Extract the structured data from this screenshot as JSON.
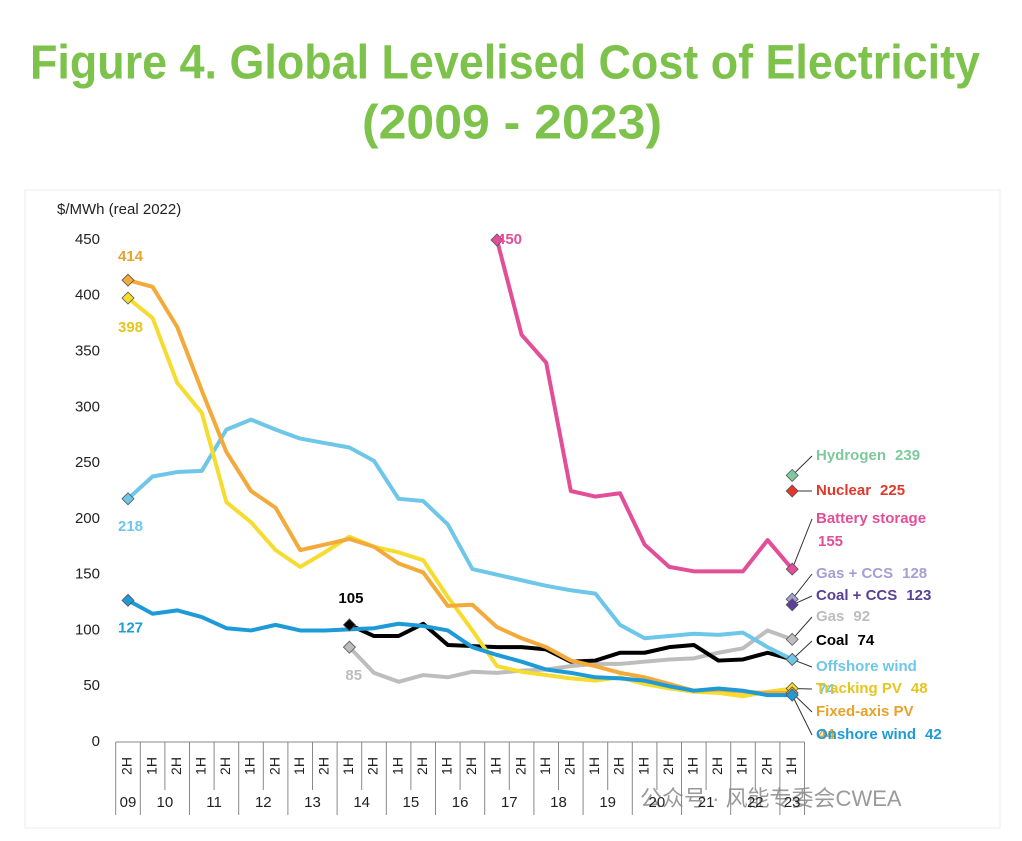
{
  "chart_data": {
    "type": "line",
    "title": "Figure 4. Global Levelised Cost of Electricity",
    "subtitle": "(2009 - 2023)",
    "y_label": "$/MWh (real 2022)",
    "categories": [
      "2H",
      "1H",
      "2H",
      "1H",
      "2H",
      "1H",
      "2H",
      "1H",
      "2H",
      "1H",
      "2H",
      "1H",
      "2H",
      "1H",
      "2H",
      "1H",
      "2H",
      "1H",
      "2H",
      "1H",
      "2H",
      "1H",
      "2H",
      "1H",
      "2H",
      "1H",
      "2H",
      "1H"
    ],
    "years": [
      "09",
      "10",
      "11",
      "12",
      "13",
      "14",
      "15",
      "16",
      "17",
      "18",
      "19",
      "20",
      "21",
      "22",
      "23"
    ],
    "ylim": [
      0,
      450
    ],
    "yticks": [
      0,
      50,
      100,
      150,
      200,
      250,
      300,
      350,
      400,
      450
    ],
    "grid": false,
    "series": [
      {
        "name": "Hydrogen",
        "color": "#7ec99b",
        "values": [
          null,
          null,
          null,
          null,
          null,
          null,
          null,
          null,
          null,
          null,
          null,
          null,
          null,
          null,
          null,
          null,
          null,
          null,
          null,
          null,
          null,
          null,
          null,
          null,
          null,
          null,
          null,
          239
        ]
      },
      {
        "name": "Nuclear",
        "color": "#e2372a",
        "values": [
          null,
          null,
          null,
          null,
          null,
          null,
          null,
          null,
          null,
          null,
          null,
          null,
          null,
          null,
          null,
          null,
          null,
          null,
          null,
          null,
          null,
          null,
          null,
          null,
          null,
          null,
          null,
          225
        ]
      },
      {
        "name": "Battery storage",
        "color": "#e24e98",
        "values": [
          null,
          null,
          null,
          null,
          null,
          null,
          null,
          null,
          null,
          null,
          null,
          null,
          null,
          null,
          null,
          450,
          365,
          340,
          225,
          220,
          223,
          177,
          157,
          153,
          153,
          153,
          181,
          155
        ]
      },
      {
        "name": "Gas + CCS",
        "color": "#a49fd6",
        "values": [
          null,
          null,
          null,
          null,
          null,
          null,
          null,
          null,
          null,
          null,
          null,
          null,
          null,
          null,
          null,
          null,
          null,
          null,
          null,
          null,
          null,
          null,
          null,
          null,
          null,
          null,
          null,
          128
        ]
      },
      {
        "name": "Coal + CCS",
        "color": "#5b3f97",
        "values": [
          null,
          null,
          null,
          null,
          null,
          null,
          null,
          null,
          null,
          null,
          null,
          null,
          null,
          null,
          null,
          null,
          null,
          null,
          null,
          null,
          null,
          null,
          null,
          null,
          null,
          null,
          null,
          123
        ]
      },
      {
        "name": "Gas",
        "color": "#bdbdbd",
        "values": [
          null,
          null,
          null,
          null,
          null,
          null,
          null,
          null,
          null,
          85,
          62,
          54,
          60,
          58,
          63,
          62,
          64,
          65,
          68,
          70,
          70,
          72,
          74,
          75,
          80,
          84,
          100,
          92
        ]
      },
      {
        "name": "Coal",
        "color": "#000000",
        "values": [
          null,
          null,
          null,
          null,
          null,
          null,
          null,
          null,
          null,
          105,
          95,
          95,
          106,
          87,
          86,
          85,
          85,
          83,
          72,
          73,
          80,
          80,
          85,
          87,
          73,
          74,
          80,
          74
        ]
      },
      {
        "name": "Offshore wind",
        "color": "#6ec6e8",
        "values": [
          218,
          238,
          242,
          243,
          280,
          289,
          280,
          272,
          268,
          264,
          252,
          218,
          216,
          195,
          155,
          150,
          145,
          140,
          136,
          133,
          105,
          93,
          95,
          97,
          96,
          98,
          85,
          74
        ]
      },
      {
        "name": "Tracking PV",
        "color": "#f5dc2e",
        "values": [
          398,
          380,
          322,
          295,
          215,
          197,
          172,
          157,
          170,
          184,
          175,
          170,
          163,
          130,
          100,
          68,
          63,
          60,
          57,
          55,
          58,
          52,
          48,
          45,
          44,
          41,
          45,
          48
        ]
      },
      {
        "name": "Fixed-axis PV",
        "color": "#f3aa3a",
        "values": [
          414,
          408,
          372,
          315,
          260,
          225,
          210,
          172,
          177,
          182,
          175,
          160,
          152,
          122,
          123,
          103,
          93,
          85,
          73,
          68,
          62,
          58,
          52,
          46,
          47,
          45,
          44,
          44
        ]
      },
      {
        "name": "Onshore wind",
        "color": "#1e9bd7",
        "values": [
          127,
          115,
          118,
          112,
          102,
          100,
          105,
          100,
          100,
          101,
          102,
          106,
          104,
          100,
          85,
          78,
          72,
          65,
          62,
          58,
          57,
          55,
          50,
          46,
          48,
          46,
          42,
          42
        ]
      }
    ],
    "watermark": "公众号 · 风能专委会CWEA"
  }
}
